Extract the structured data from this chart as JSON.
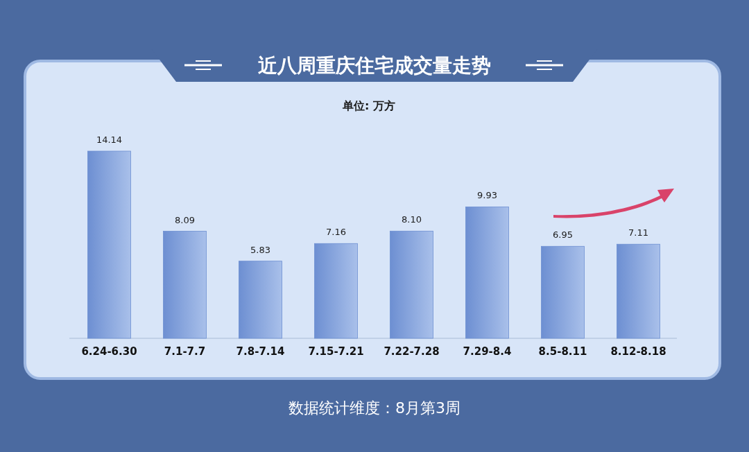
{
  "chart_data": {
    "type": "bar",
    "title": "近八周重庆住宅成交量走势",
    "ylabel": "单位: 万方",
    "categories": [
      "6.24-6.30",
      "7.1-7.7",
      "7.8-7.14",
      "7.15-7.21",
      "7.22-7.28",
      "7.29-8.4",
      "8.5-8.11",
      "8.12-8.18"
    ],
    "values": [
      14.14,
      8.09,
      5.83,
      7.16,
      8.1,
      9.93,
      6.95,
      7.11
    ],
    "value_labels": [
      "14.14",
      "8.09",
      "5.83",
      "7.16",
      "8.10",
      "9.93",
      "6.95",
      "7.11"
    ],
    "color": "#6d8fd2",
    "annotations": [
      "数据统计维度：8月第3周"
    ]
  }
}
